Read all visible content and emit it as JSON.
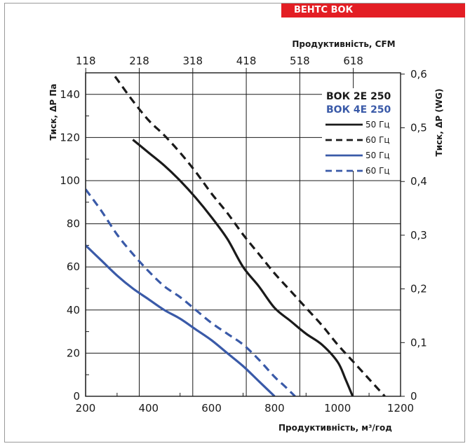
{
  "brand": {
    "label": "ВЕНТС ВОК"
  },
  "chart_data": {
    "type": "line",
    "xlabel": "Продуктивність, м³/год",
    "ylabel": "Тиск, ΔР Па",
    "x2label": "Продуктивність, CFM",
    "y2label": "Тиск, ΔР (WG)",
    "xlim": [
      200,
      1200
    ],
    "ylim": [
      0,
      150
    ],
    "x_ticks": [
      200,
      400,
      600,
      800,
      1000,
      1200
    ],
    "y_ticks": [
      0,
      20,
      40,
      60,
      80,
      100,
      120,
      140
    ],
    "x2_ticks": [
      "118",
      "218",
      "318",
      "418",
      "518",
      "618"
    ],
    "x2_tick_positions_m3h": [
      200.5,
      370.4,
      540.3,
      710.2,
      880.1,
      1050
    ],
    "y2_ticks": [
      "0",
      "0,1",
      "0,2",
      "0,3",
      "0,4",
      "0,5",
      "0,6"
    ],
    "y2_tick_values_pa": [
      0,
      24.9,
      49.8,
      74.7,
      99.6,
      124.5,
      149.4
    ],
    "grid": true,
    "legend": {
      "position": "top-right",
      "groups": [
        {
          "title": "ВОК 2Е 250",
          "color": "#1a1a1a",
          "entries": [
            "50 Гц",
            "60 Гц"
          ]
        },
        {
          "title": "ВОК 4Е 250",
          "color": "#3a5aa8",
          "entries": [
            "50 Гц",
            "60 Гц"
          ]
        }
      ]
    },
    "series": [
      {
        "name": "ВОК 2Е 250 50 Гц",
        "color": "#1a1a1a",
        "dashed": false,
        "x": [
          350,
          400,
          450,
          500,
          550,
          600,
          650,
          700,
          750,
          800,
          850,
          900,
          950,
          1000,
          1025,
          1048
        ],
        "y": [
          119,
          113,
          107,
          100,
          92,
          83,
          73,
          60,
          51,
          41,
          35,
          29,
          24,
          16,
          8,
          0
        ]
      },
      {
        "name": "ВОК 2Е 250 60 Гц",
        "color": "#1a1a1a",
        "dashed": false,
        "x": [
          270,
          300,
          350,
          400,
          450,
          500,
          550,
          600,
          650,
          700,
          750,
          800,
          850,
          900,
          950,
          1000,
          1050,
          1100,
          1150
        ],
        "y": [
          153,
          147,
          137,
          128,
          121,
          113,
          104,
          94,
          85,
          75,
          66,
          57,
          49,
          41,
          33,
          24,
          16,
          8,
          0
        ]
      },
      {
        "name": "ВОК 4Е 250 50 Гц",
        "color": "#3a5aa8",
        "dashed": false,
        "x": [
          200,
          250,
          300,
          350,
          400,
          450,
          500,
          550,
          600,
          650,
          700,
          750,
          800
        ],
        "y": [
          70,
          63,
          56,
          50,
          45,
          40,
          36,
          31,
          26,
          20,
          14,
          7,
          0
        ]
      },
      {
        "name": "ВОК 4Е 250 60 Гц",
        "color": "#3a5aa8",
        "dashed": false,
        "x": [
          200,
          250,
          300,
          350,
          400,
          450,
          500,
          550,
          600,
          650,
          700,
          750,
          800,
          830,
          865
        ],
        "y": [
          96,
          86,
          75,
          66,
          58,
          51,
          46,
          40,
          34,
          29,
          24,
          17,
          9,
          5,
          0
        ]
      }
    ]
  }
}
